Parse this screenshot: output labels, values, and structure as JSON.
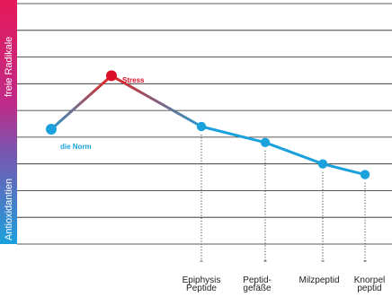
{
  "chart_data": {
    "type": "line",
    "side_bar": {
      "top_label": "freie Radikale",
      "bottom_label": "Antioxidantien",
      "top_color": "#e4195a",
      "bottom_color": "#1ba1dc"
    },
    "series": [
      {
        "x": "start",
        "y": 4.3,
        "color": "#1ba1dc"
      },
      {
        "x": "Stress",
        "y": 6.3,
        "color": "#dc0f28",
        "label": "Stress"
      },
      {
        "x": "Epiphysis Peptide",
        "y": 4.4,
        "color": "#1ba1dc"
      },
      {
        "x": "Peptid-gefäße",
        "y": 3.8,
        "color": "#1ba1dc"
      },
      {
        "x": "Milzpeptid",
        "y": 3.0,
        "color": "#1ba1dc"
      },
      {
        "x": "Knorpelpeptid",
        "y": 2.6,
        "color": "#1ba1dc"
      }
    ],
    "norm_label": "die Norm",
    "categories": [
      {
        "line1": "Epiphysis",
        "line2": "Peptide"
      },
      {
        "line1": "Peptid-",
        "line2": "gefäße"
      },
      {
        "line1": "Milzpeptid",
        "line2": ""
      },
      {
        "line1": "Knorpel",
        "line2": "peptid"
      }
    ],
    "ylim": [
      0,
      9
    ],
    "gridlines": 9,
    "grid": true,
    "colors": {
      "line_blue": "#1ba1dc",
      "stress_red": "#dc0f28",
      "grid": "#222222"
    }
  }
}
